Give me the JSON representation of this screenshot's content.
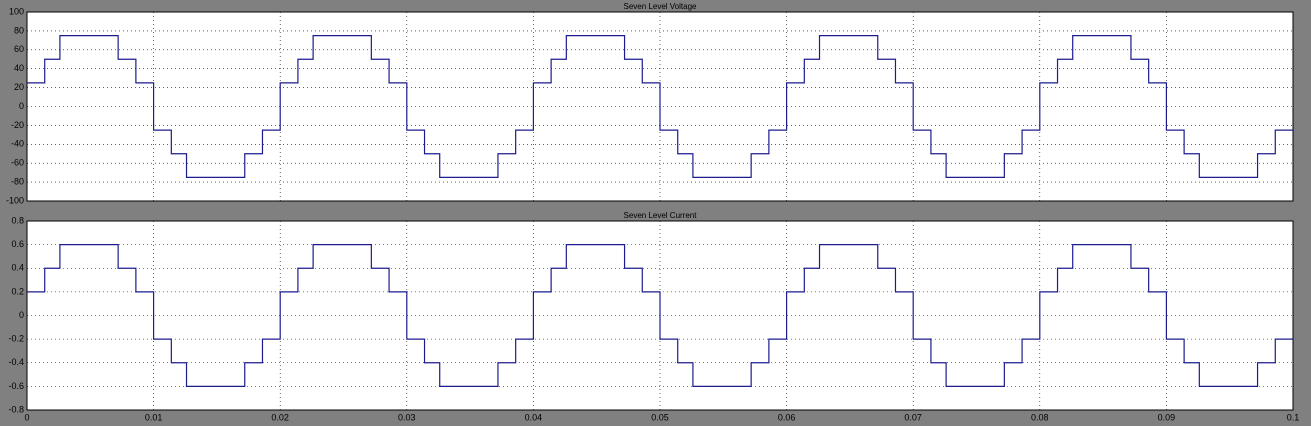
{
  "chart_data": [
    {
      "type": "line",
      "title": "Seven Level Voltage",
      "drawstyle": "steps-post",
      "grid": true,
      "xlim": [
        0,
        0.1
      ],
      "xticks": [
        0,
        0.01,
        0.02,
        0.03,
        0.04,
        0.05,
        0.06,
        0.07,
        0.08,
        0.09,
        0.1
      ],
      "ylim": [
        -100,
        100
      ],
      "yticks": [
        -100,
        -80,
        -60,
        -40,
        -20,
        0,
        20,
        40,
        60,
        80,
        100
      ],
      "x": [
        0,
        0.0014,
        0.0026,
        0.0072,
        0.0086,
        0.01,
        0.0114,
        0.0126,
        0.0172,
        0.0186,
        0.02,
        0.0214,
        0.0226,
        0.0272,
        0.0286,
        0.03,
        0.0314,
        0.0326,
        0.0372,
        0.0386,
        0.04,
        0.0414,
        0.0426,
        0.0472,
        0.0486,
        0.05,
        0.0514,
        0.0526,
        0.0572,
        0.0586,
        0.06,
        0.0614,
        0.0626,
        0.0672,
        0.0686,
        0.07,
        0.0714,
        0.0726,
        0.0772,
        0.0786,
        0.08,
        0.0814,
        0.0826,
        0.0872,
        0.0886,
        0.09,
        0.0914,
        0.0926,
        0.0972,
        0.0986,
        0.1
      ],
      "series": [
        {
          "name": "Voltage",
          "color": "#1c1c8f",
          "values": [
            25,
            50,
            75,
            50,
            25,
            -25,
            -50,
            -75,
            -50,
            -25,
            25,
            50,
            75,
            50,
            25,
            -25,
            -50,
            -75,
            -50,
            -25,
            25,
            50,
            75,
            50,
            25,
            -25,
            -50,
            -75,
            -50,
            -25,
            25,
            50,
            75,
            50,
            25,
            -25,
            -50,
            -75,
            -50,
            -25,
            25,
            50,
            75,
            50,
            25,
            -25,
            -50,
            -75,
            -50,
            -25,
            -25
          ]
        }
      ]
    },
    {
      "type": "line",
      "title": "Seven Level Current",
      "drawstyle": "steps-post",
      "grid": true,
      "xlim": [
        0,
        0.1
      ],
      "xticks": [
        0,
        0.01,
        0.02,
        0.03,
        0.04,
        0.05,
        0.06,
        0.07,
        0.08,
        0.09,
        0.1
      ],
      "ylim": [
        -0.8,
        0.8
      ],
      "yticks": [
        -0.8,
        -0.6,
        -0.4,
        -0.2,
        0,
        0.2,
        0.4,
        0.6,
        0.8
      ],
      "x": [
        0,
        0.0014,
        0.0026,
        0.0072,
        0.0086,
        0.01,
        0.0114,
        0.0126,
        0.0172,
        0.0186,
        0.02,
        0.0214,
        0.0226,
        0.0272,
        0.0286,
        0.03,
        0.0314,
        0.0326,
        0.0372,
        0.0386,
        0.04,
        0.0414,
        0.0426,
        0.0472,
        0.0486,
        0.05,
        0.0514,
        0.0526,
        0.0572,
        0.0586,
        0.06,
        0.0614,
        0.0626,
        0.0672,
        0.0686,
        0.07,
        0.0714,
        0.0726,
        0.0772,
        0.0786,
        0.08,
        0.0814,
        0.0826,
        0.0872,
        0.0886,
        0.09,
        0.0914,
        0.0926,
        0.0972,
        0.0986,
        0.1
      ],
      "series": [
        {
          "name": "Current",
          "color": "#1c1c8f",
          "values": [
            0.2,
            0.4,
            0.6,
            0.4,
            0.2,
            -0.2,
            -0.4,
            -0.6,
            -0.4,
            -0.2,
            0.2,
            0.4,
            0.6,
            0.4,
            0.2,
            -0.2,
            -0.4,
            -0.6,
            -0.4,
            -0.2,
            0.2,
            0.4,
            0.6,
            0.4,
            0.2,
            -0.2,
            -0.4,
            -0.6,
            -0.4,
            -0.2,
            0.2,
            0.4,
            0.6,
            0.4,
            0.2,
            -0.2,
            -0.4,
            -0.6,
            -0.4,
            -0.2,
            0.2,
            0.4,
            0.6,
            0.4,
            0.2,
            -0.2,
            -0.4,
            -0.6,
            -0.4,
            -0.2,
            -0.2
          ]
        }
      ]
    }
  ]
}
